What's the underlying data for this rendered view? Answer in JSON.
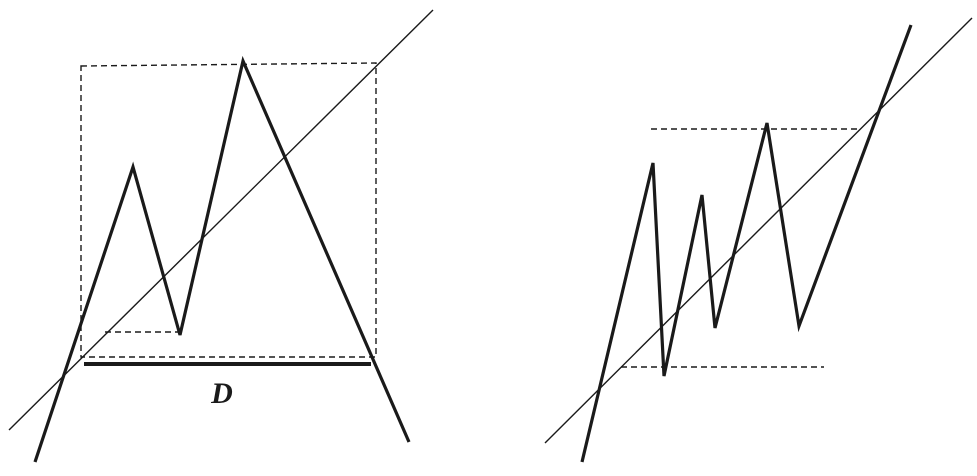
{
  "figure": {
    "left_panel": {
      "label": "D"
    }
  },
  "colors": {
    "ink": "#1a1a1a",
    "background": "#ffffff"
  }
}
